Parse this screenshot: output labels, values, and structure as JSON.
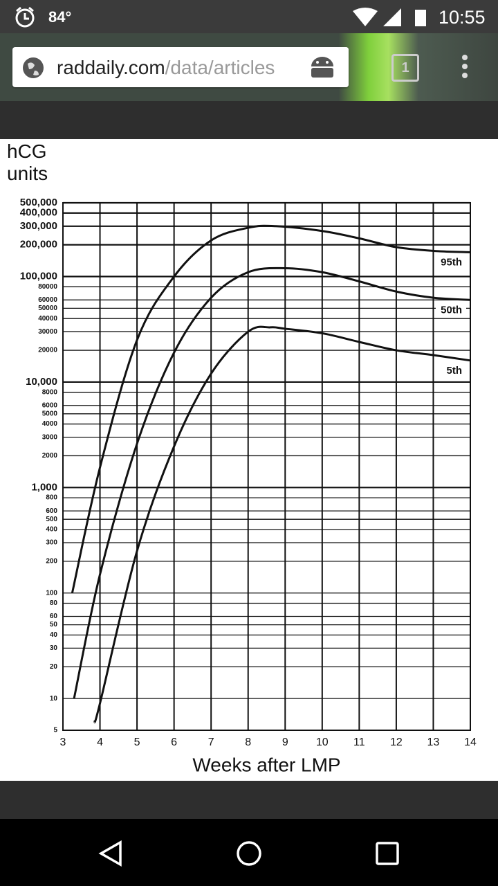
{
  "status_bar": {
    "temperature": "84°",
    "time": "10:55"
  },
  "browser": {
    "url_host": "raddaily.com",
    "url_path": "/data/articles",
    "tab_count": "1"
  },
  "chart_data": {
    "type": "line",
    "ylabel": "hCG units",
    "xlabel": "Weeks after LMP",
    "log_y": true,
    "grid": true,
    "xlim": [
      3,
      14
    ],
    "xticks": [
      3,
      4,
      5,
      6,
      7,
      8,
      9,
      10,
      11,
      12,
      13,
      14
    ],
    "ylim": [
      5,
      500000
    ],
    "yticks": [
      {
        "value": 500000,
        "label": "500,000"
      },
      {
        "value": 400000,
        "label": "400,000"
      },
      {
        "value": 300000,
        "label": "300,000"
      },
      {
        "value": 200000,
        "label": "200,000"
      },
      {
        "value": 100000,
        "label": "100,000"
      },
      80000,
      60000,
      50000,
      40000,
      30000,
      20000,
      {
        "value": 10000,
        "label": "10,000"
      },
      8000,
      6000,
      5000,
      4000,
      3000,
      2000,
      {
        "value": 1000,
        "label": "1,000"
      },
      800,
      600,
      500,
      400,
      300,
      200,
      100,
      80,
      60,
      50,
      40,
      30,
      20,
      10,
      5
    ],
    "series": [
      {
        "name": "95th",
        "color": "#111111",
        "x": [
          3.25,
          4,
          5,
          6,
          7,
          8,
          8.75,
          10,
          11,
          12,
          13,
          14
        ],
        "values": [
          100,
          1550,
          25000,
          100000,
          220000,
          290000,
          300000,
          270000,
          230000,
          190000,
          175000,
          170000
        ]
      },
      {
        "name": "50th",
        "color": "#111111",
        "x": [
          3.3,
          4,
          5,
          6,
          7,
          8,
          9,
          10,
          11,
          12,
          13,
          14
        ],
        "values": [
          10,
          150,
          2600,
          19000,
          63000,
          110000,
          120000,
          110000,
          90000,
          72000,
          63000,
          60000
        ]
      },
      {
        "name": "5th",
        "color": "#111111",
        "x": [
          3.85,
          4,
          5,
          6,
          7,
          8,
          8.6,
          9,
          10,
          11,
          12,
          13,
          14
        ],
        "values": [
          6,
          9,
          250,
          2450,
          12000,
          30000,
          33000,
          32000,
          29000,
          24000,
          20000,
          18000,
          16000
        ]
      }
    ]
  }
}
